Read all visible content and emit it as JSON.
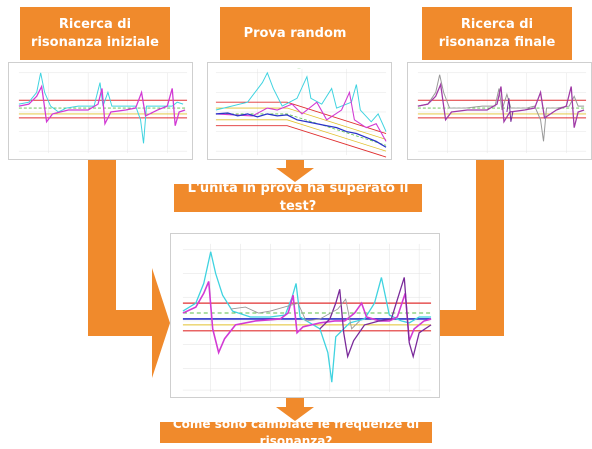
{
  "colors": {
    "orange": "#f08a2c",
    "box_text": "#ffffff",
    "cyan": "#3fd3e0",
    "magenta": "#d23ad4",
    "purple": "#7a2a9a",
    "blue": "#2a33c8",
    "red": "#e03030",
    "green": "#5bbf4a",
    "yellow": "#e2c12e",
    "grid": "#dddddd"
  },
  "boxes": {
    "initial_search": "Ricerca di risonanza iniziale",
    "random_test": "Prova random",
    "final_search": "Ricerca di risonanza finale",
    "passed_question": "L'unità in prova ha superato il test?",
    "changed_question": "Come sono cambiate le frequenze di risonanza?"
  },
  "plots": {
    "initial": {
      "type": "resonance-search",
      "traces": [
        "cyan-fine",
        "magenta-thick"
      ]
    },
    "random": {
      "type": "random-psd",
      "traces": [
        "cyan",
        "magenta",
        "blue"
      ]
    },
    "final": {
      "type": "resonance-search",
      "traces": [
        "gray-fine",
        "purple-thick"
      ]
    },
    "comparison": {
      "type": "resonance-overlay",
      "traces": [
        "cyan",
        "magenta",
        "purple",
        "gray"
      ]
    }
  }
}
